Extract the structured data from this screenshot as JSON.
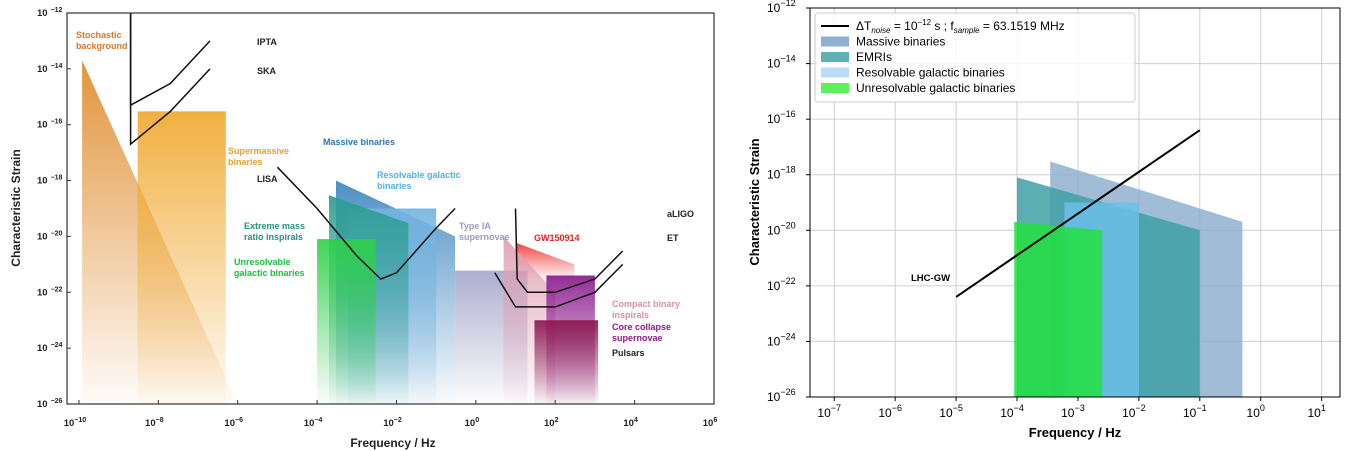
{
  "chart_data": [
    {
      "type": "area",
      "xlabel": "Frequency / Hz",
      "ylabel": "Characteristic Strain",
      "xscale": "log",
      "yscale": "log",
      "xlim": [
        5e-11,
        1000000.0
      ],
      "ylim": [
        1e-26,
        1e-12
      ],
      "x_ticks": [
        "10^-10",
        "10^-8",
        "10^-6",
        "10^-4",
        "10^-2",
        "10^0",
        "10^2",
        "10^4",
        "10^6"
      ],
      "y_ticks": [
        "10^-12",
        "10^-14",
        "10^-16",
        "10^-18",
        "10^-20",
        "10^-22",
        "10^-24",
        "10^-26"
      ],
      "grid": false,
      "regions": [
        {
          "name": "Stochastic background",
          "color": "#e08b2c",
          "polygon": [
            [
              1.2e-10,
              2e-14
            ],
            [
              1e-06,
              1e-26
            ],
            [
              1.2e-10,
              1e-26
            ]
          ]
        },
        {
          "name": "Supermassive binaries",
          "color": "#f0a830",
          "polygon": [
            [
              3e-09,
              3e-16
            ],
            [
              5e-07,
              3e-16
            ],
            [
              5e-07,
              1e-26
            ],
            [
              3e-09,
              1e-26
            ]
          ]
        },
        {
          "name": "Massive binaries",
          "color": "#3f86c0",
          "polygon": [
            [
              0.0003,
              1e-18
            ],
            [
              0.3,
              1e-20
            ],
            [
              0.3,
              1e-26
            ],
            [
              0.0003,
              1e-26
            ]
          ]
        },
        {
          "name": "Resolvable galactic binaries",
          "color": "#74b4e0",
          "polygon": [
            [
              0.0006,
              1e-19
            ],
            [
              0.1,
              1e-19
            ],
            [
              0.1,
              1e-26
            ],
            [
              0.0006,
              1e-26
            ]
          ]
        },
        {
          "name": "Extreme mass ratio inspirals",
          "color": "#2a9d8f",
          "polygon": [
            [
              0.0002,
              3e-19
            ],
            [
              0.02,
              3e-20
            ],
            [
              0.02,
              1e-26
            ],
            [
              0.0002,
              1e-26
            ]
          ]
        },
        {
          "name": "Unresolvable galactic binaries",
          "color": "#2fd04a",
          "polygon": [
            [
              0.0001,
              8e-21
            ],
            [
              0.003,
              8e-21
            ],
            [
              0.003,
              1e-26
            ],
            [
              0.0001,
              1e-26
            ]
          ]
        },
        {
          "name": "Type IA supernovae",
          "color": "#a7a7cc",
          "polygon": [
            [
              0.3,
              6e-22
            ],
            [
              20,
              6e-22
            ],
            [
              20,
              1e-26
            ],
            [
              0.3,
              1e-26
            ]
          ]
        },
        {
          "name": "GW150914",
          "color": "#ee3333",
          "polygon": [
            [
              10,
              6e-21
            ],
            [
              300,
              1e-21
            ],
            [
              300,
              3e-22
            ],
            [
              10,
              3e-22
            ]
          ]
        },
        {
          "name": "Compact binary inspirals",
          "color": "#e0a0b4",
          "polygon": [
            [
              5,
              1e-20
            ],
            [
              100,
              1e-22
            ],
            [
              100,
              1e-26
            ],
            [
              5,
              1e-26
            ]
          ]
        },
        {
          "name": "Core collapse supernovae",
          "color": "#8a1a8e",
          "polygon": [
            [
              60,
              4e-22
            ],
            [
              1000,
              4e-22
            ],
            [
              1000,
              1e-26
            ],
            [
              60,
              1e-26
            ]
          ]
        },
        {
          "name": "Pulsars",
          "color": "#8b1750",
          "polygon": [
            [
              30,
              1e-23
            ],
            [
              1200,
              1e-23
            ],
            [
              1200,
              1e-26
            ],
            [
              30,
              1e-26
            ]
          ]
        }
      ],
      "sensitivity_curves": [
        {
          "name": "IPTA",
          "x": [
            2e-09,
            2e-09,
            2e-08,
            2e-07
          ],
          "y": [
            1e-12,
            5e-16,
            3e-15,
            1e-13
          ]
        },
        {
          "name": "SKA",
          "x": [
            2e-09,
            2e-09,
            2e-08,
            2e-07
          ],
          "y": [
            1e-12,
            2e-17,
            3e-16,
            1e-14
          ]
        },
        {
          "name": "LISA",
          "x": [
            1e-05,
            0.0001,
            0.001,
            0.004,
            0.01,
            0.1,
            0.3
          ],
          "y": [
            3e-18,
            1e-19,
            2e-21,
            3e-22,
            5e-22,
            2e-20,
            1e-19
          ]
        },
        {
          "name": "aLIGO",
          "x": [
            10,
            11,
            20,
            100,
            1000,
            5000
          ],
          "y": [
            1e-19,
            3e-22,
            1e-22,
            1e-22,
            3e-22,
            3e-21
          ]
        },
        {
          "name": "ET",
          "x": [
            3,
            10,
            30,
            100,
            1000,
            5000
          ],
          "y": [
            5e-22,
            3e-23,
            3e-23,
            3e-23,
            1e-22,
            1e-21
          ]
        }
      ],
      "labels": [
        {
          "text": "Stochastic background",
          "color": "#d9782a"
        },
        {
          "text": "IPTA",
          "color": "#222222"
        },
        {
          "text": "SKA",
          "color": "#222222"
        },
        {
          "text": "Supermassive binaries",
          "color": "#e8a030"
        },
        {
          "text": "LISA",
          "color": "#222222"
        },
        {
          "text": "Massive binaries",
          "color": "#2a78b8"
        },
        {
          "text": "Resolvable galactic binaries",
          "color": "#5aaee0"
        },
        {
          "text": "Extreme mass ratio inspirals",
          "color": "#259080"
        },
        {
          "text": "Unresolvable galactic binaries",
          "color": "#22c042"
        },
        {
          "text": "Type IA supernovae",
          "color": "#9a9ac4"
        },
        {
          "text": "GW150914",
          "color": "#e82020"
        },
        {
          "text": "aLIGO",
          "color": "#222222"
        },
        {
          "text": "ET",
          "color": "#222222"
        },
        {
          "text": "Compact binary inspirals",
          "color": "#d890aa"
        },
        {
          "text": "Core collapse supernovae",
          "color": "#8a1a8e"
        },
        {
          "text": "Pulsars",
          "color": "#222222"
        }
      ]
    },
    {
      "type": "area",
      "xlabel": "Frequency / Hz",
      "ylabel": "Characteristic Strain",
      "xscale": "log",
      "yscale": "log",
      "xlim": [
        4e-08,
        20.0
      ],
      "ylim": [
        1e-26,
        1e-12
      ],
      "x_ticks": [
        "10^-7",
        "10^-6",
        "10^-5",
        "10^-4",
        "10^-3",
        "10^-2",
        "10^-1",
        "10^0",
        "10^1"
      ],
      "y_ticks": [
        "10^-12",
        "10^-14",
        "10^-16",
        "10^-18",
        "10^-20",
        "10^-22",
        "10^-24",
        "10^-26"
      ],
      "grid": true,
      "legend": {
        "placement": "top-left",
        "entries": [
          {
            "kind": "line",
            "color": "#000000",
            "text_main": "ΔT",
            "text_sub1": "noise",
            "text_mid": " = 10",
            "text_sup": "−12",
            "text_mid2": " s ; f",
            "text_sub2": "sample",
            "text_end": " = 63.1519 MHz"
          },
          {
            "kind": "patch",
            "color": "#8fb0d0",
            "text": "Massive binaries"
          },
          {
            "kind": "patch",
            "color": "#5fb2b4",
            "text": "EMRIs"
          },
          {
            "kind": "patch",
            "color": "#b8ddf8",
            "text": "Resolvable galactic binaries"
          },
          {
            "kind": "patch",
            "color": "#5cf05c",
            "text": "Unresolvable galactic binaries"
          }
        ]
      },
      "regions": [
        {
          "name": "Massive binaries",
          "color": "#8fb0d0",
          "polygon": [
            [
              0.00035,
              3e-18
            ],
            [
              0.5,
              2e-20
            ],
            [
              0.5,
              1e-26
            ],
            [
              0.00035,
              1e-26
            ]
          ]
        },
        {
          "name": "EMRIs",
          "color": "#40a0a4",
          "polygon": [
            [
              0.0001,
              8e-19
            ],
            [
              0.1,
              1e-20
            ],
            [
              0.1,
              1e-26
            ],
            [
              0.0001,
              1e-26
            ]
          ]
        },
        {
          "name": "Resolvable galactic binaries",
          "color": "#6bbfe8",
          "polygon": [
            [
              0.0006,
              1e-19
            ],
            [
              0.01,
              1e-19
            ],
            [
              0.01,
              1e-26
            ],
            [
              0.0006,
              1e-26
            ]
          ]
        },
        {
          "name": "Unresolvable galactic binaries",
          "color": "#22e040",
          "polygon": [
            [
              9e-05,
              2e-20
            ],
            [
              0.0025,
              1e-20
            ],
            [
              0.0025,
              1e-26
            ],
            [
              9e-05,
              1e-26
            ]
          ]
        }
      ],
      "sensitivity_curves": [
        {
          "name": "LHC-GW",
          "x": [
            1e-05,
            0.1
          ],
          "y": [
            4e-23,
            4e-17
          ]
        }
      ],
      "labels": [
        {
          "text": "LHC-GW",
          "color": "#000000"
        }
      ]
    }
  ]
}
